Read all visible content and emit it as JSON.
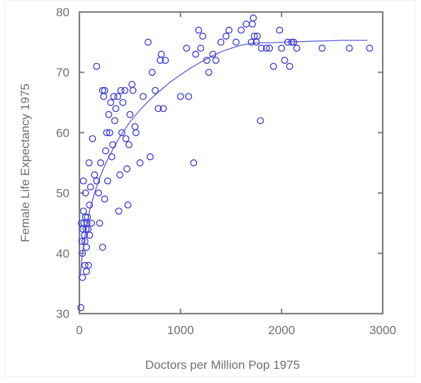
{
  "chart_data": {
    "type": "scatter",
    "xlabel": "Doctors per Million Pop 1975",
    "ylabel": "Female Life Expectancy 1975",
    "xlim": [
      0,
      3000
    ],
    "ylim": [
      30,
      80
    ],
    "x_ticks": [
      0,
      1000,
      2000,
      3000
    ],
    "y_ticks": [
      30,
      40,
      50,
      60,
      70,
      80
    ],
    "x_tick_labels": [
      "0",
      "1000",
      "2000",
      "3000"
    ],
    "y_tick_labels": [
      "30",
      "40",
      "50",
      "60",
      "70",
      "80"
    ],
    "grid": false,
    "colors": {
      "points": "#3a3ad6",
      "fit_line": "#5a5ae0",
      "axes": "#7f7f7f",
      "text": "#6e6e6e"
    },
    "series": [
      {
        "marker": "open-circle",
        "points": [
          [
            15,
            31
          ],
          [
            20,
            45
          ],
          [
            25,
            42
          ],
          [
            30,
            40
          ],
          [
            30,
            36
          ],
          [
            35,
            44
          ],
          [
            40,
            47
          ],
          [
            40,
            52
          ],
          [
            45,
            45
          ],
          [
            50,
            43
          ],
          [
            55,
            38
          ],
          [
            55,
            42
          ],
          [
            60,
            46
          ],
          [
            60,
            50
          ],
          [
            65,
            44
          ],
          [
            70,
            41
          ],
          [
            70,
            37
          ],
          [
            75,
            45
          ],
          [
            80,
            46
          ],
          [
            85,
            44
          ],
          [
            90,
            38
          ],
          [
            95,
            55
          ],
          [
            100,
            48
          ],
          [
            100,
            43
          ],
          [
            110,
            51
          ],
          [
            120,
            45
          ],
          [
            130,
            59
          ],
          [
            150,
            53
          ],
          [
            170,
            71
          ],
          [
            170,
            52
          ],
          [
            190,
            50
          ],
          [
            200,
            45
          ],
          [
            210,
            55
          ],
          [
            230,
            67
          ],
          [
            230,
            41
          ],
          [
            240,
            66
          ],
          [
            250,
            67
          ],
          [
            250,
            49
          ],
          [
            260,
            57
          ],
          [
            270,
            60
          ],
          [
            280,
            52
          ],
          [
            290,
            63
          ],
          [
            300,
            60
          ],
          [
            310,
            65
          ],
          [
            320,
            56
          ],
          [
            330,
            58
          ],
          [
            340,
            66
          ],
          [
            350,
            62
          ],
          [
            360,
            64
          ],
          [
            380,
            66
          ],
          [
            390,
            47
          ],
          [
            400,
            53
          ],
          [
            410,
            67
          ],
          [
            420,
            60
          ],
          [
            430,
            65
          ],
          [
            450,
            67
          ],
          [
            460,
            59
          ],
          [
            470,
            54
          ],
          [
            480,
            48
          ],
          [
            490,
            58
          ],
          [
            500,
            63
          ],
          [
            520,
            68
          ],
          [
            530,
            67
          ],
          [
            550,
            61
          ],
          [
            560,
            60
          ],
          [
            600,
            55
          ],
          [
            630,
            66
          ],
          [
            680,
            75
          ],
          [
            700,
            56
          ],
          [
            720,
            70
          ],
          [
            750,
            67
          ],
          [
            780,
            64
          ],
          [
            800,
            72
          ],
          [
            810,
            73
          ],
          [
            830,
            64
          ],
          [
            850,
            72
          ],
          [
            1000,
            66
          ],
          [
            1060,
            74
          ],
          [
            1080,
            66
          ],
          [
            1130,
            55
          ],
          [
            1150,
            73
          ],
          [
            1180,
            77
          ],
          [
            1200,
            74
          ],
          [
            1220,
            76
          ],
          [
            1260,
            72
          ],
          [
            1280,
            70
          ],
          [
            1320,
            73
          ],
          [
            1350,
            72
          ],
          [
            1400,
            75
          ],
          [
            1450,
            76
          ],
          [
            1480,
            77
          ],
          [
            1550,
            75
          ],
          [
            1600,
            77
          ],
          [
            1650,
            78
          ],
          [
            1700,
            75
          ],
          [
            1710,
            78
          ],
          [
            1720,
            79
          ],
          [
            1730,
            76
          ],
          [
            1750,
            75
          ],
          [
            1760,
            76
          ],
          [
            1790,
            62
          ],
          [
            1800,
            74
          ],
          [
            1850,
            74
          ],
          [
            1880,
            74
          ],
          [
            1920,
            71
          ],
          [
            1980,
            77
          ],
          [
            2000,
            74
          ],
          [
            2030,
            72
          ],
          [
            2060,
            75
          ],
          [
            2080,
            71
          ],
          [
            2100,
            75
          ],
          [
            2120,
            75
          ],
          [
            2150,
            74
          ],
          [
            2400,
            74
          ],
          [
            2670,
            74
          ],
          [
            2870,
            74
          ]
        ]
      }
    ],
    "fit_curve": {
      "x": [
        10,
        30,
        60,
        100,
        150,
        200,
        250,
        300,
        400,
        500,
        600,
        700,
        800,
        900,
        1000,
        1100,
        1200,
        1300,
        1400,
        1500,
        1600,
        1700,
        1800,
        1900,
        2000,
        2200,
        2400,
        2600,
        2800,
        2850
      ],
      "y": [
        36.5,
        40.0,
        43.5,
        47.0,
        50.0,
        52.5,
        54.5,
        56.3,
        59.3,
        61.8,
        63.8,
        65.5,
        67.0,
        68.4,
        69.6,
        70.7,
        71.7,
        72.6,
        73.4,
        74.0,
        74.5,
        74.8,
        74.9,
        74.9,
        75.0,
        75.1,
        75.2,
        75.3,
        75.3,
        75.3
      ]
    }
  }
}
